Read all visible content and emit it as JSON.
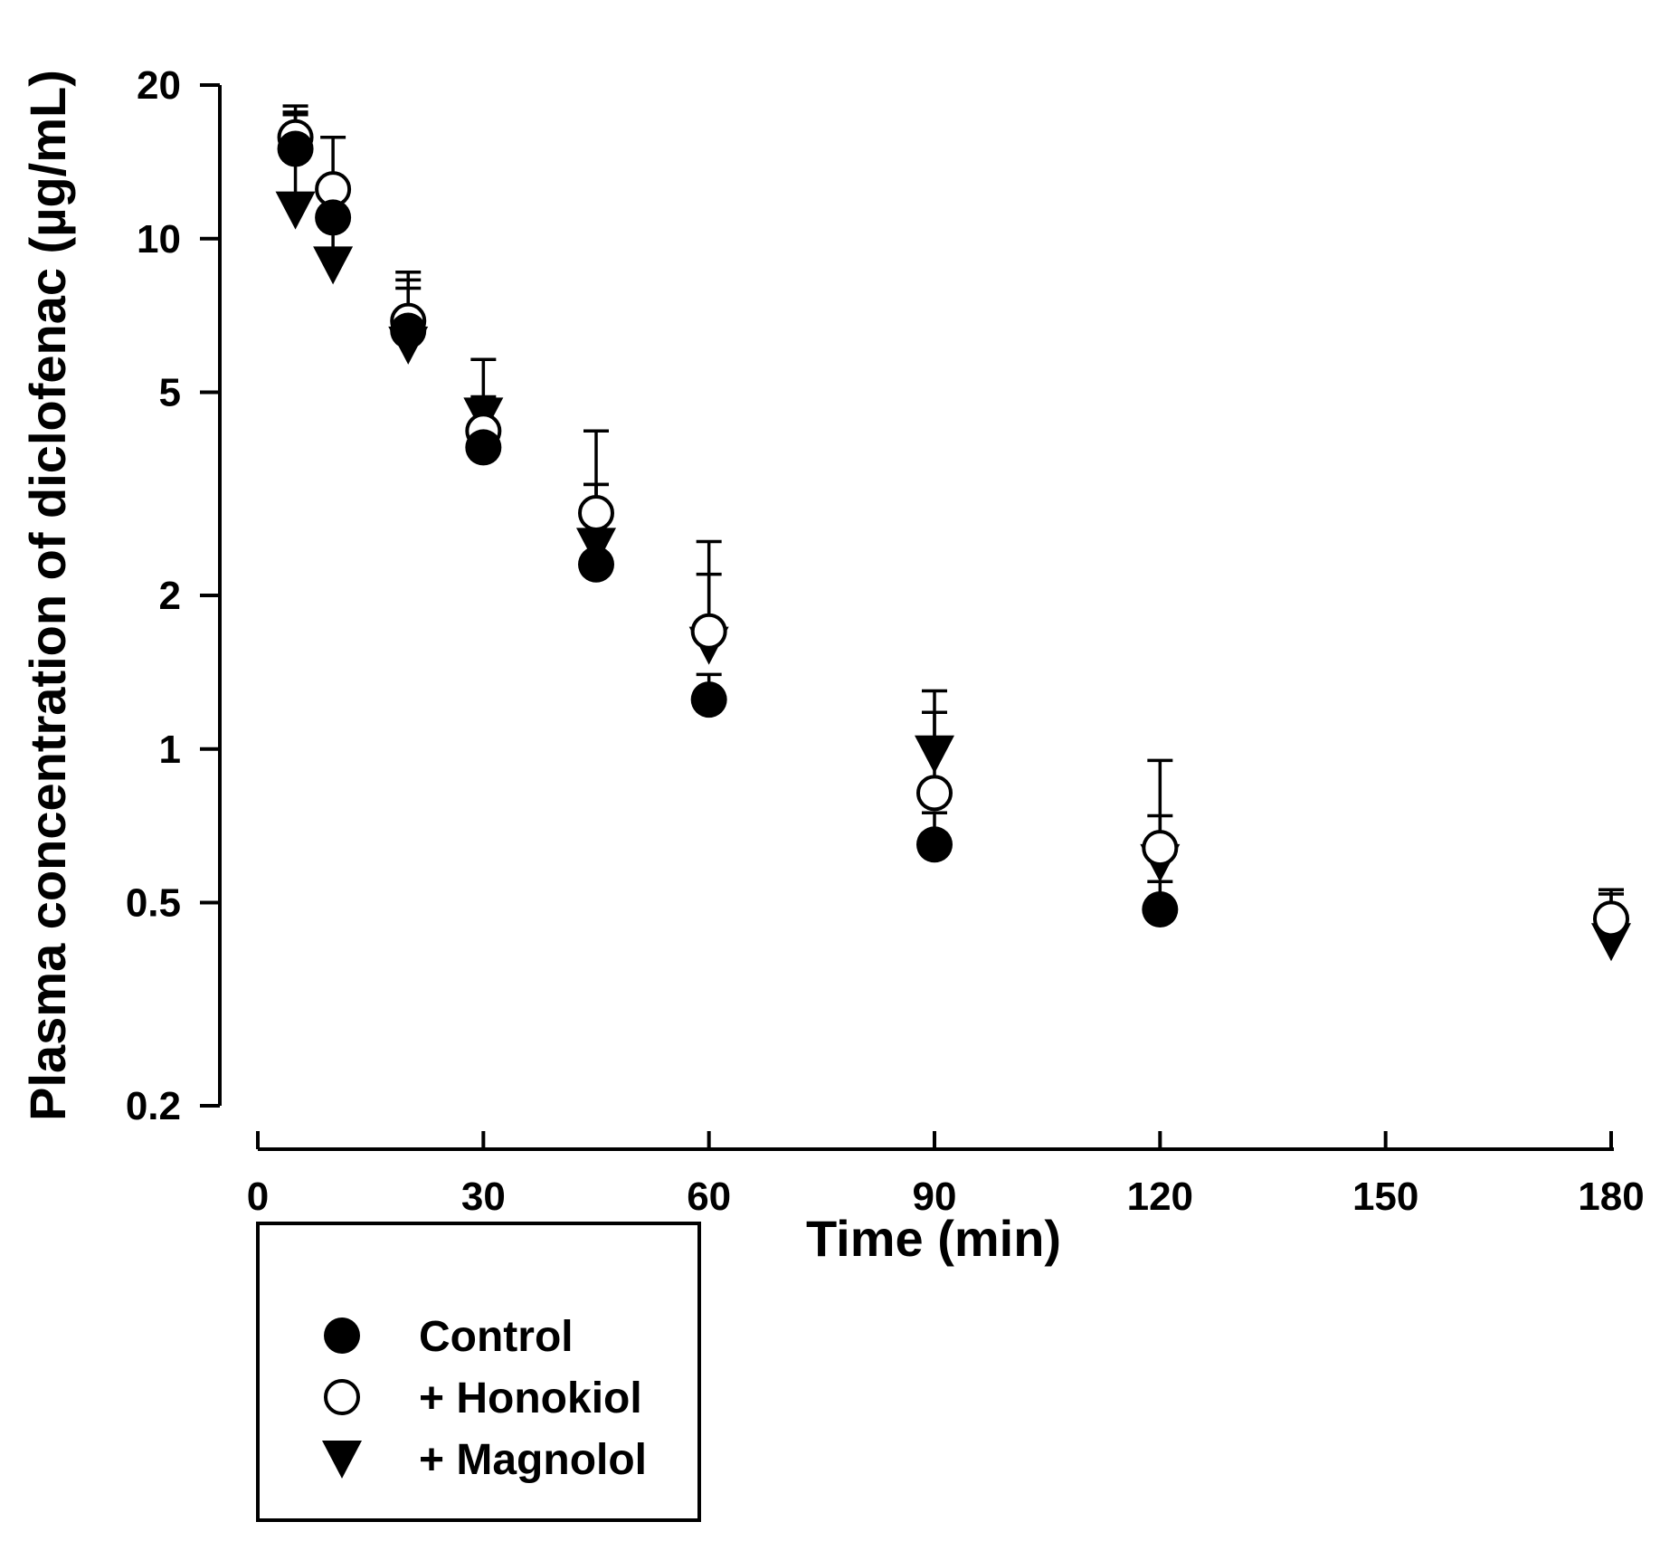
{
  "chart_data": {
    "type": "scatter",
    "title": "",
    "xlabel": "Time (min)",
    "ylabel": "Plasma concentration of diclofenac (µg/mL)",
    "x_scale": "linear",
    "y_scale": "log",
    "xlim": [
      0,
      180
    ],
    "ylim": [
      0.2,
      20
    ],
    "xticks": [
      0,
      30,
      60,
      90,
      120,
      150,
      180
    ],
    "xtick_labels": [
      "0",
      "30",
      "60",
      "90",
      "120",
      "150",
      "180"
    ],
    "yticks": [
      0.2,
      0.5,
      1,
      2,
      5,
      10,
      20
    ],
    "ytick_labels": [
      "0.2",
      "0.5",
      "1",
      "2",
      "5",
      "10",
      "20"
    ],
    "grid": false,
    "legend_position": "bottom-left",
    "series": [
      {
        "name": "Control",
        "marker": "filled-circle",
        "color": "#000000",
        "x": [
          5,
          10,
          20,
          30,
          45,
          60,
          90,
          120
        ],
        "y": [
          15,
          11,
          6.6,
          3.9,
          2.3,
          1.25,
          0.65,
          0.485
        ],
        "err_upper": [
          17.5,
          12.2,
          8.0,
          4.8,
          3.3,
          1.4,
          0.75,
          0.55
        ]
      },
      {
        "name": "+ Honokiol",
        "marker": "open-circle",
        "color": "#000000",
        "x": [
          5,
          10,
          20,
          30,
          45,
          60,
          90,
          120,
          180
        ],
        "y": [
          15.8,
          12.5,
          6.9,
          4.2,
          2.9,
          1.7,
          0.82,
          0.64,
          0.465
        ],
        "err_upper": [
          18.2,
          15.8,
          8.6,
          5.8,
          4.2,
          2.55,
          1.3,
          0.95,
          0.53
        ]
      },
      {
        "name": "+ Magnolol",
        "marker": "filled-triangle-down",
        "color": "#000000",
        "x": [
          5,
          10,
          20,
          30,
          45,
          60,
          90,
          120,
          180
        ],
        "y": [
          11.4,
          8.9,
          6.2,
          4.5,
          2.5,
          1.6,
          0.98,
          0.6,
          0.42
        ],
        "err_upper": [
          17.7,
          12.0,
          8.3,
          4.9,
          3.3,
          2.2,
          1.18,
          0.74,
          0.52
        ]
      }
    ]
  }
}
